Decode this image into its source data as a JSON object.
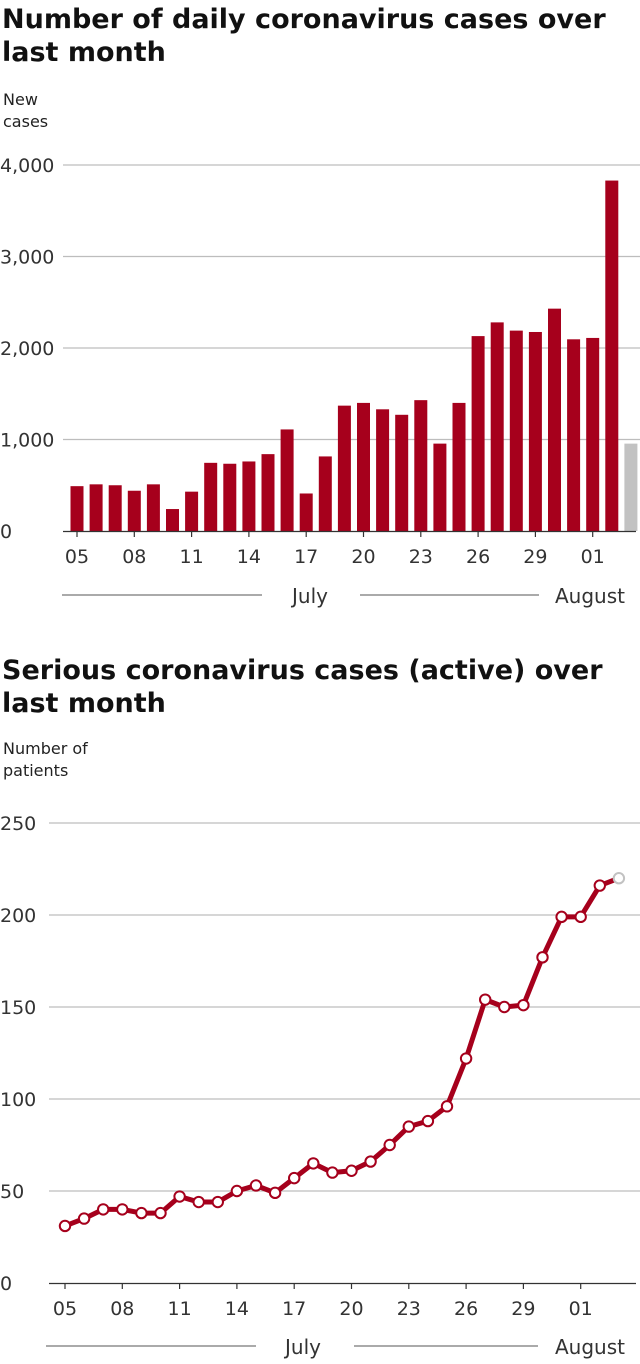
{
  "chart_data": [
    {
      "type": "bar",
      "title": "Number of daily coronavirus cases over last month",
      "ylabel": "New\ncases",
      "ylim": [
        0,
        4000
      ],
      "yticks": [
        0,
        1000,
        2000,
        3000,
        4000
      ],
      "ytick_labels": [
        "0",
        "1,000",
        "2,000",
        "3,000",
        "4,000"
      ],
      "xtick_labels": [
        "05",
        "08",
        "11",
        "14",
        "17",
        "20",
        "23",
        "26",
        "29",
        "01"
      ],
      "month_labels": [
        "July",
        "August"
      ],
      "categories": [
        "Jul 05",
        "Jul 06",
        "Jul 07",
        "Jul 08",
        "Jul 09",
        "Jul 10",
        "Jul 11",
        "Jul 12",
        "Jul 13",
        "Jul 14",
        "Jul 15",
        "Jul 16",
        "Jul 17",
        "Jul 18",
        "Jul 19",
        "Jul 20",
        "Jul 21",
        "Jul 22",
        "Jul 23",
        "Jul 24",
        "Jul 25",
        "Jul 26",
        "Jul 27",
        "Jul 28",
        "Jul 29",
        "Jul 30",
        "Jul 31",
        "Aug 01",
        "Aug 02",
        "Aug 03"
      ],
      "values": [
        490,
        510,
        500,
        440,
        510,
        240,
        430,
        745,
        735,
        760,
        840,
        1110,
        410,
        815,
        1370,
        1400,
        1330,
        1270,
        1430,
        955,
        1400,
        2130,
        2280,
        2190,
        2175,
        2430,
        2095,
        2110,
        3830,
        955
      ],
      "colors": {
        "bar": "#a6001c",
        "partial": "#c2c2c2"
      },
      "partial_last": true
    },
    {
      "type": "line",
      "title": "Serious coronavirus cases (active) over last month",
      "ylabel": "Number of\npatients",
      "ylim": [
        0,
        250
      ],
      "yticks": [
        0,
        50,
        100,
        150,
        200,
        250
      ],
      "ytick_labels": [
        "0",
        "50",
        "100",
        "150",
        "200",
        "250"
      ],
      "xtick_labels": [
        "05",
        "08",
        "11",
        "14",
        "17",
        "20",
        "23",
        "26",
        "29",
        "01"
      ],
      "month_labels": [
        "July",
        "August"
      ],
      "categories": [
        "Jul 05",
        "Jul 06",
        "Jul 07",
        "Jul 08",
        "Jul 09",
        "Jul 10",
        "Jul 11",
        "Jul 12",
        "Jul 13",
        "Jul 14",
        "Jul 15",
        "Jul 16",
        "Jul 17",
        "Jul 18",
        "Jul 19",
        "Jul 20",
        "Jul 21",
        "Jul 22",
        "Jul 23",
        "Jul 24",
        "Jul 25",
        "Jul 26",
        "Jul 27",
        "Jul 28",
        "Jul 29",
        "Jul 30",
        "Jul 31",
        "Aug 01",
        "Aug 02",
        "Aug 03"
      ],
      "values": [
        31,
        35,
        40,
        40,
        38,
        38,
        47,
        44,
        44,
        50,
        53,
        49,
        57,
        65,
        60,
        61,
        66,
        75,
        85,
        88,
        96,
        122,
        154,
        150,
        151,
        177,
        199,
        199,
        216,
        220
      ],
      "colors": {
        "line": "#a6001c",
        "marker_fill": "#ffffff",
        "partial": "#c2c2c2"
      },
      "partial_last": true
    }
  ]
}
